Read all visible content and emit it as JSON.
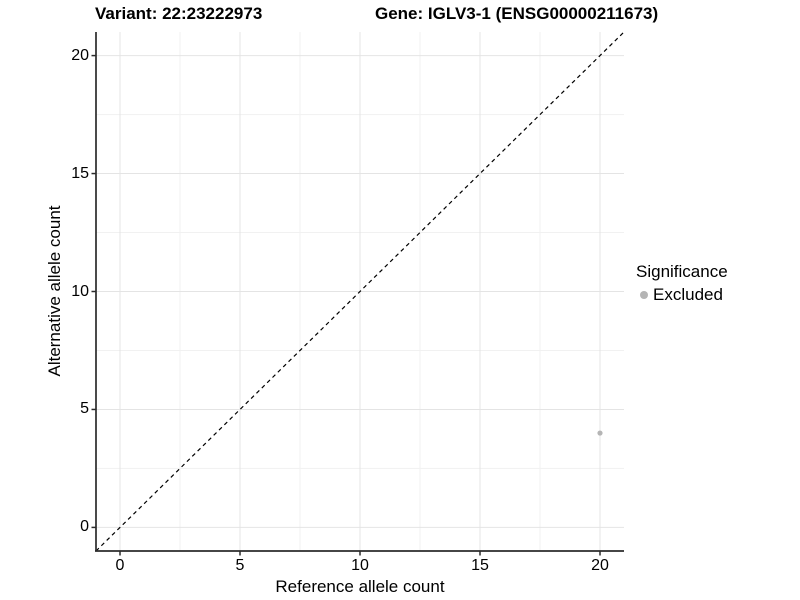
{
  "header": {
    "variant_title": "Variant: 22:23222973",
    "gene_title": "Gene: IGLV3-1 (ENSG00000211673)"
  },
  "legend": {
    "title": "Significance",
    "items": [
      {
        "label": "Excluded",
        "color": "#b5b5b5"
      }
    ]
  },
  "axes": {
    "xlabel": "Reference allele count",
    "ylabel": "Alternative allele count"
  },
  "chart_data": {
    "type": "scatter",
    "title": "Variant: 22:23222973    Gene: IGLV3-1 (ENSG00000211673)",
    "xlabel": "Reference allele count",
    "ylabel": "Alternative allele count",
    "xlim": [
      -1,
      21
    ],
    "ylim": [
      -1,
      21
    ],
    "xticks": [
      0,
      5,
      10,
      15,
      20
    ],
    "yticks": [
      0,
      5,
      10,
      15,
      20
    ],
    "xticks_minor": [
      2.5,
      7.5,
      12.5,
      17.5
    ],
    "yticks_minor": [
      2.5,
      7.5,
      12.5,
      17.5
    ],
    "grid": true,
    "legend_position": "right",
    "series": [
      {
        "name": "Excluded",
        "color": "#b5b5b5",
        "points": [
          {
            "x": 20,
            "y": 4
          }
        ]
      }
    ],
    "reference_line": {
      "kind": "identity",
      "from": [
        -1,
        -1
      ],
      "to": [
        21,
        21
      ],
      "style": "dashed",
      "color": "#000000"
    },
    "colors": {
      "background": "#ffffff",
      "grid_major": "#e4e4e4",
      "grid_minor": "#f1f1f1",
      "axis_line": "#2b2b2b",
      "text": "#000000",
      "point": "#b5b5b5"
    }
  }
}
